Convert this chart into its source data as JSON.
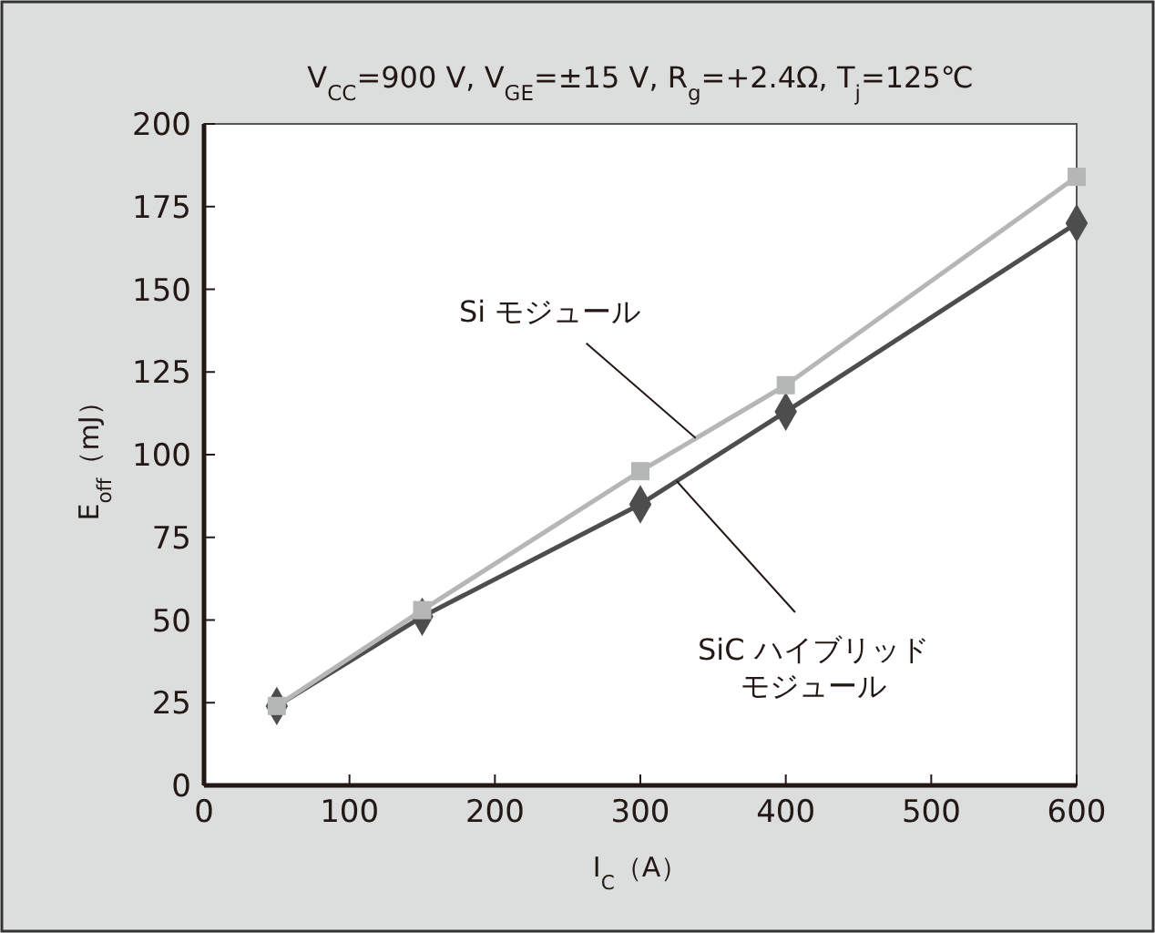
{
  "chart_data": {
    "type": "line",
    "title": "V$_{CC}$=900 V, V$_{GE}$=±15 V, R$_{g}$=+2.4Ω, T$_{j}$=125℃",
    "xlabel": "I$_{C}$（A）",
    "ylabel": "E$_{off}$（mJ）",
    "x": [
      50,
      150,
      300,
      400,
      600
    ],
    "series": [
      {
        "color": "#b5b6b6",
        "marker": "square",
        "values": [
          24,
          53,
          95,
          121,
          184
        ]
      },
      {
        "color": "#4d4d4d",
        "marker": "diamond",
        "values": [
          24,
          51,
          85,
          113,
          170
        ]
      }
    ],
    "annotations": [
      {
        "text": "Si モジュール",
        "x": 338,
        "y": 105
      },
      {
        "text": "SiC ハイブリッドモジュール",
        "x": 325,
        "y": 92
      }
    ],
    "xlim": [
      0,
      600
    ],
    "xticks": [
      0,
      100,
      200,
      300,
      400,
      500,
      600
    ],
    "ylim": [
      0,
      200
    ],
    "yticks": [
      0,
      25,
      50,
      75,
      100,
      125,
      150,
      175,
      200
    ]
  }
}
